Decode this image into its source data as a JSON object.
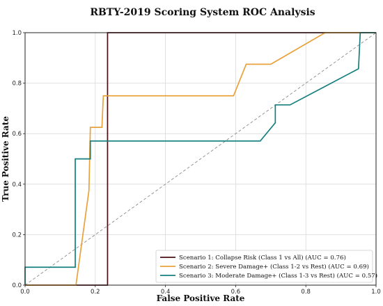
{
  "chart_data": {
    "type": "line",
    "title": "RBTY-2019 Scoring System ROC Analysis",
    "xlabel": "False Positive Rate",
    "ylabel": "True Positive Rate",
    "xlim": [
      0.0,
      1.0
    ],
    "ylim": [
      0.0,
      1.0
    ],
    "xticks": [
      "0.0",
      "0.2",
      "0.4",
      "0.6",
      "0.8",
      "1.0"
    ],
    "yticks": [
      "0.0",
      "0.2",
      "0.4",
      "0.6",
      "0.8",
      "1.0"
    ],
    "grid": true,
    "legend_position": "bottom-right",
    "reference_line": {
      "x": [
        0.0,
        1.0
      ],
      "y": [
        0.0,
        1.0
      ],
      "color": "#8a8a8a",
      "style": "dashed"
    },
    "series": [
      {
        "name": "Scenario 1: Collapse Risk (Class 1 vs All) (AUC = 0.76)",
        "color": "#4a0f12",
        "x": [
          0.0,
          0.235,
          0.235,
          0.235,
          0.855,
          1.0
        ],
        "y": [
          0.0,
          0.0,
          0.5,
          1.0,
          1.0,
          1.0
        ]
      },
      {
        "name": "Scenario 2: Severe Damage+ (Class 1-2 vs Rest) (AUC = 0.69)",
        "color": "#e9a23b",
        "x": [
          0.0,
          0.145,
          0.182,
          0.186,
          0.219,
          0.223,
          0.594,
          0.63,
          0.7,
          0.855,
          1.0
        ],
        "y": [
          0.0,
          0.0,
          0.375,
          0.625,
          0.625,
          0.75,
          0.75,
          0.875,
          0.875,
          1.0,
          1.0
        ]
      },
      {
        "name": "Scenario 3: Moderate Damage+ (Class 1-3 vs Rest) (AUC = 0.57)",
        "color": "#167f7f",
        "x": [
          0.0,
          0.0,
          0.143,
          0.143,
          0.186,
          0.186,
          0.67,
          0.713,
          0.713,
          0.755,
          0.95,
          0.95,
          0.955,
          1.0
        ],
        "y": [
          0.0,
          0.071,
          0.071,
          0.5,
          0.5,
          0.571,
          0.571,
          0.643,
          0.714,
          0.714,
          0.857,
          0.857,
          1.0,
          1.0
        ]
      }
    ]
  }
}
